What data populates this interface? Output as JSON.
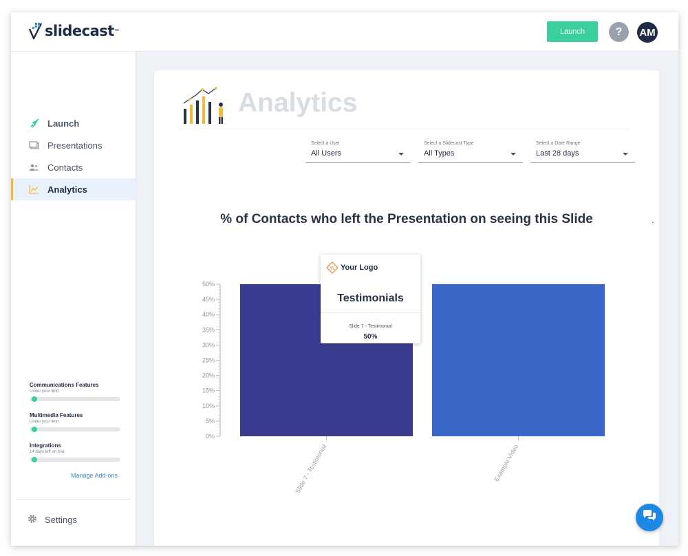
{
  "brand": {
    "name": "slidecast",
    "tm": "™"
  },
  "header": {
    "launch_label": "Launch",
    "help_label": "?",
    "avatar_initials": "AM"
  },
  "sidebar": {
    "items": [
      {
        "label": "Launch",
        "icon": "rocket-icon"
      },
      {
        "label": "Presentations",
        "icon": "slides-icon"
      },
      {
        "label": "Contacts",
        "icon": "contacts-icon"
      },
      {
        "label": "Analytics",
        "icon": "analytics-icon",
        "active": true
      }
    ],
    "features": [
      {
        "title": "Communications Features",
        "status": "Under your limit",
        "progress": 0.05
      },
      {
        "title": "Multimedia Features",
        "status": "Under your limit",
        "progress": 0.05
      },
      {
        "title": "Integrations",
        "status": "14 days left on trial",
        "progress": 0.05
      }
    ],
    "manage_addons": "Manage Add-ons",
    "settings_label": "Settings"
  },
  "page": {
    "title": "Analytics",
    "filters": [
      {
        "label": "Select a User",
        "value": "All Users"
      },
      {
        "label": "Select a Slidecast Type",
        "value": "All Types"
      },
      {
        "label": "Select a Date Range",
        "value": "Last 28 days"
      }
    ]
  },
  "tooltip": {
    "logo_text": "Your Logo",
    "logo_mark": "YL",
    "title": "Testimonials",
    "slide": "Slide 7 - Testimonial",
    "value": "50%"
  },
  "colors": {
    "accent": "#3ccf9e",
    "bar1": "#3a3d8f",
    "bar2": "#3a66c8",
    "active_border": "#f5b93e"
  },
  "chart_data": {
    "type": "bar",
    "title": "% of Contacts who left the Presentation on seeing this Slide",
    "categories": [
      "Slide 7 - Testimonial",
      "Example Video"
    ],
    "values": [
      50,
      50
    ],
    "yticks": [
      "0%",
      "5%",
      "10%",
      "15%",
      "20%",
      "25%",
      "30%",
      "35%",
      "40%",
      "45%",
      "50%"
    ],
    "ylim": [
      0,
      50
    ],
    "xlabel": "",
    "ylabel": "",
    "grid": false
  }
}
